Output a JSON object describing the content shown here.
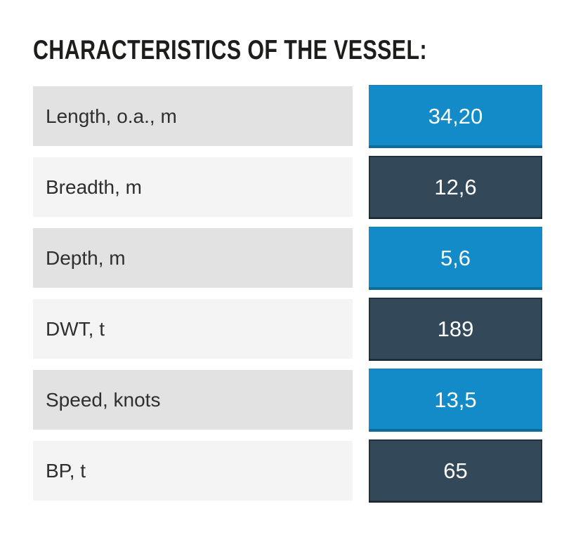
{
  "title": "CHARACTERISTICS OF THE VESSEL:",
  "colors": {
    "accent_blue": "#128bc8",
    "dark_slate": "#33495a",
    "row_light": "#e2e2e2",
    "row_lighter": "#f5f4f4",
    "title_text": "#1d1d1b",
    "label_text": "#2f2f2f",
    "value_text": "#ffffff"
  },
  "table": {
    "rows": [
      {
        "label": "Length, o.a., m",
        "value": "34,20"
      },
      {
        "label": "Breadth, m",
        "value": "12,6"
      },
      {
        "label": "Depth, m",
        "value": "5,6"
      },
      {
        "label": "DWT, t",
        "value": "189"
      },
      {
        "label": "Speed, knots",
        "value": "13,5"
      },
      {
        "label": "BP, t",
        "value": "65"
      }
    ]
  }
}
